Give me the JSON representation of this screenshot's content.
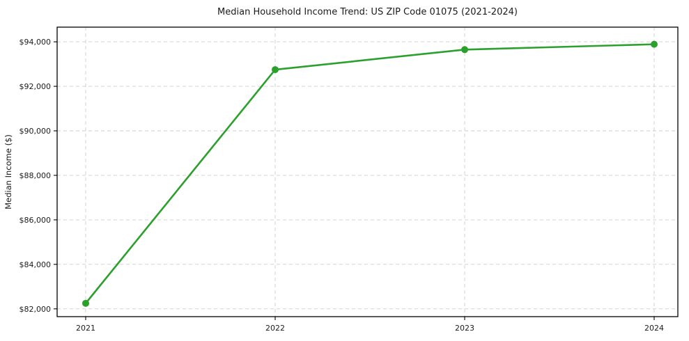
{
  "figure": {
    "background": "#ffffff"
  },
  "chart_data": {
    "type": "line",
    "title": "Median Household Income Trend: US ZIP Code 01075 (2021-2024)",
    "xlabel": "",
    "ylabel": "Median Income ($)",
    "categories": [
      "2021",
      "2022",
      "2023",
      "2024"
    ],
    "series": [
      {
        "name": "median-household-income",
        "values": [
          82250,
          92750,
          93650,
          93890
        ],
        "color": "#2ca02c",
        "marker": "circle",
        "marker_radius": 5,
        "line_width": 2.6
      }
    ],
    "y_ticks": [
      82000,
      84000,
      86000,
      88000,
      90000,
      92000,
      94000
    ],
    "y_tick_labels": [
      "$82,000",
      "$84,000",
      "$86,000",
      "$88,000",
      "$90,000",
      "$92,000",
      "$94,000"
    ],
    "ylim": [
      81650,
      94660
    ],
    "grid": true,
    "grid_style": "dashed",
    "grid_color": "#cccccc",
    "spine_color": "#000000",
    "legend_position": "none"
  }
}
